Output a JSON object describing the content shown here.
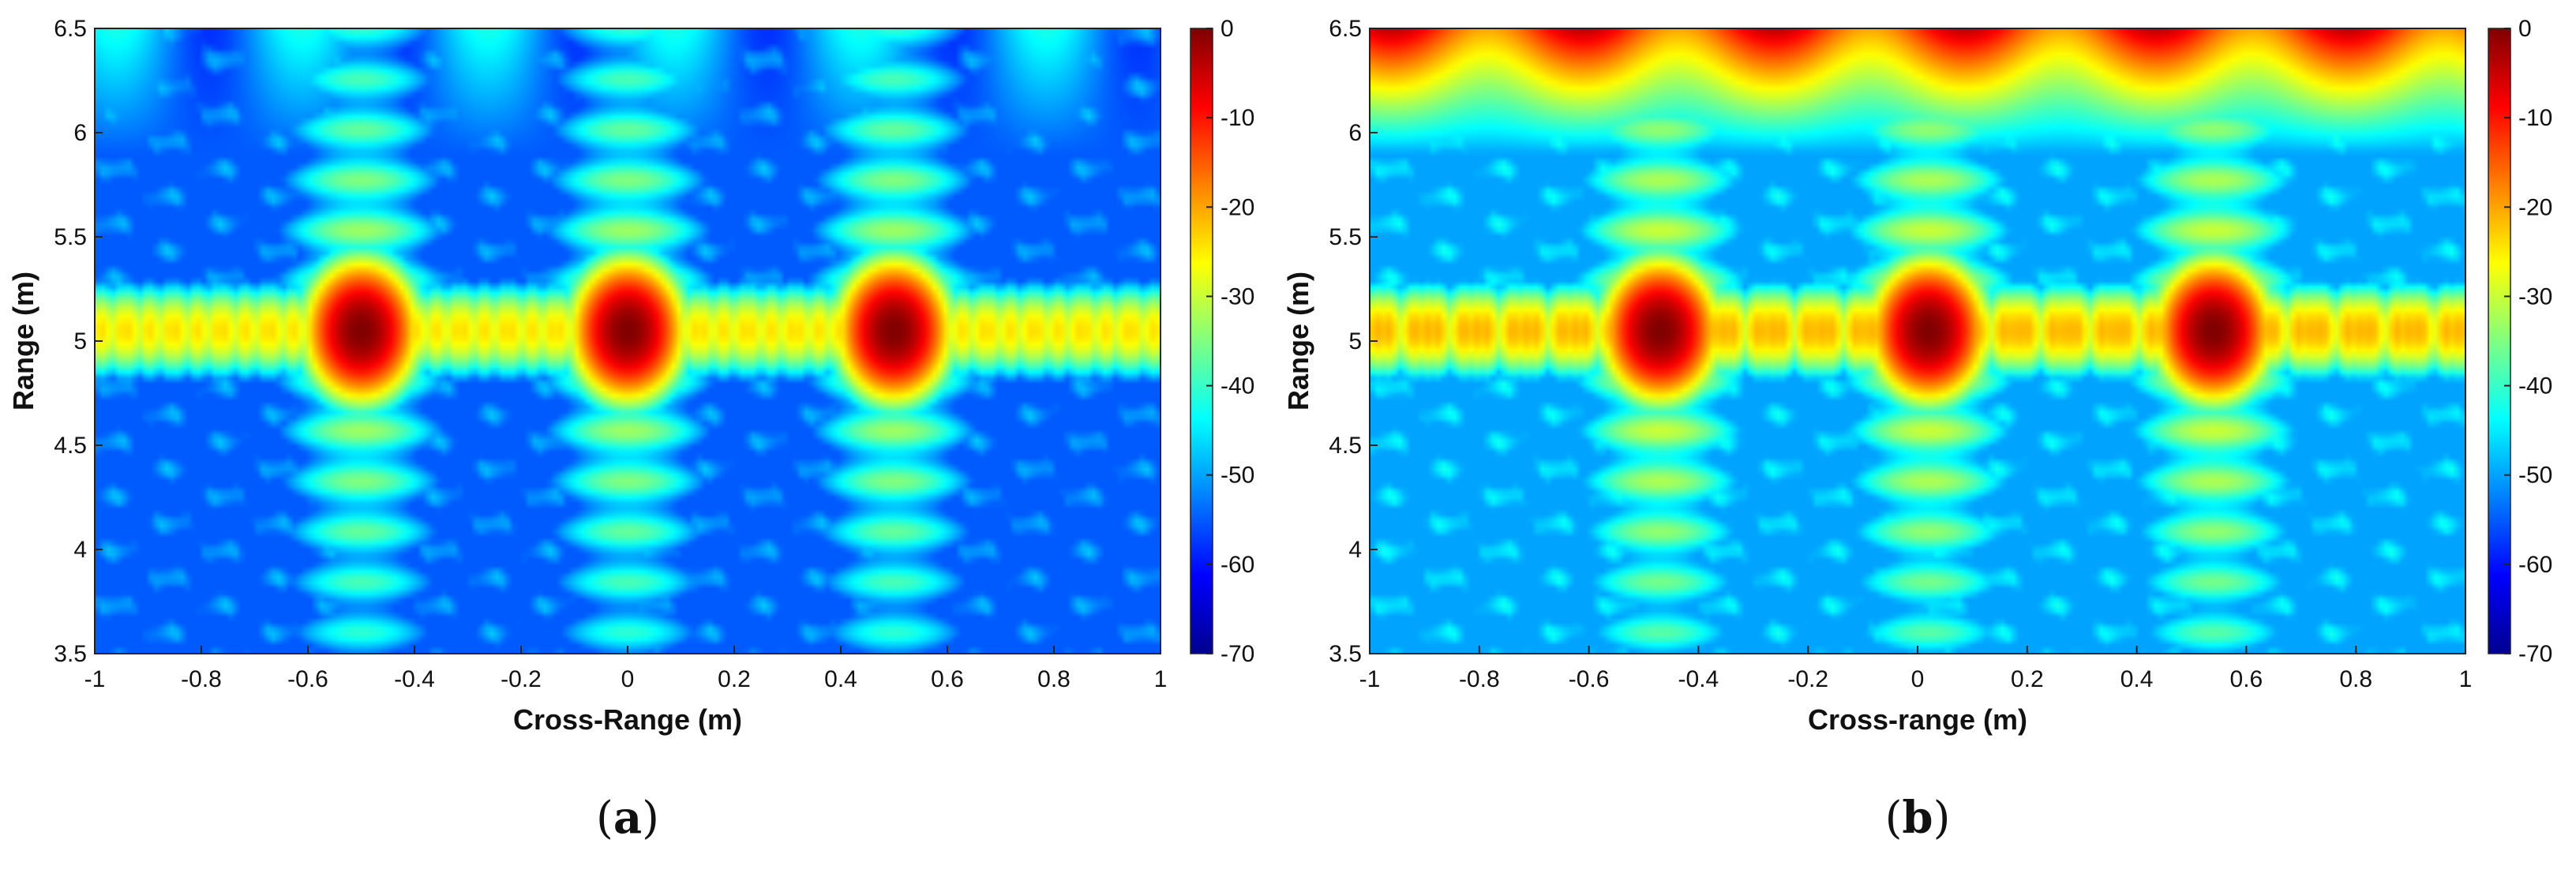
{
  "chart_data": [
    {
      "type": "heatmap",
      "panel_label": "(a)",
      "panel_letter": "a",
      "xlabel": "Cross-Range (m)",
      "ylabel": "Range (m)",
      "xlim": [
        -1,
        1
      ],
      "ylim": [
        3.5,
        6.5
      ],
      "x_ticks": [
        -1,
        -0.8,
        -0.6,
        -0.4,
        -0.2,
        0,
        0.2,
        0.4,
        0.6,
        0.8,
        1
      ],
      "x_tick_labels": [
        "-1",
        "-0.8",
        "-0.6",
        "-0.4",
        "-0.2",
        "0",
        "0.2",
        "0.4",
        "0.6",
        "0.8",
        "1"
      ],
      "y_ticks": [
        3.5,
        4,
        4.5,
        5,
        5.5,
        6,
        6.5
      ],
      "y_tick_labels": [
        "3.5",
        "4",
        "4.5",
        "5",
        "5.5",
        "6",
        "6.5"
      ],
      "colorbar": {
        "range": [
          -70,
          0
        ],
        "ticks": [
          0,
          -10,
          -20,
          -30,
          -40,
          -50,
          -60,
          -70
        ],
        "tick_labels": [
          "0",
          "-10",
          "-20",
          "-30",
          "-40",
          "-50",
          "-60",
          "-70"
        ],
        "colormap": "jet"
      },
      "targets": [
        {
          "x": -0.5,
          "y": 5.05,
          "level_db": 0
        },
        {
          "x": 0.0,
          "y": 5.05,
          "level_db": 0
        },
        {
          "x": 0.5,
          "y": 5.05,
          "level_db": 0
        }
      ],
      "background_level_db": -55,
      "sidelobe_level_db": -35,
      "top_clutter_level_db": -50
    },
    {
      "type": "heatmap",
      "panel_label": "(b)",
      "panel_letter": "b",
      "xlabel": "Cross-range (m)",
      "ylabel": "Range (m)",
      "xlim": [
        -1,
        1
      ],
      "ylim": [
        3.5,
        6.5
      ],
      "x_ticks": [
        -1,
        -0.8,
        -0.6,
        -0.4,
        -0.2,
        0,
        0.2,
        0.4,
        0.6,
        0.8,
        1
      ],
      "x_tick_labels": [
        "-1",
        "-0.8",
        "-0.6",
        "-0.4",
        "-0.2",
        "0",
        "0.2",
        "0.4",
        "0.6",
        "0.8",
        "1"
      ],
      "y_ticks": [
        3.5,
        4,
        4.5,
        5,
        5.5,
        6,
        6.5
      ],
      "y_tick_labels": [
        "3.5",
        "4",
        "4.5",
        "5",
        "5.5",
        "6",
        "6.5"
      ],
      "colorbar": {
        "range": [
          -70,
          0
        ],
        "ticks": [
          0,
          -10,
          -20,
          -30,
          -40,
          -50,
          -60,
          -70
        ],
        "tick_labels": [
          "0",
          "-10",
          "-20",
          "-30",
          "-40",
          "-50",
          "-60",
          "-70"
        ],
        "colormap": "jet"
      },
      "targets": [
        {
          "x": -0.47,
          "y": 5.05,
          "level_db": 0
        },
        {
          "x": 0.02,
          "y": 5.05,
          "level_db": 0
        },
        {
          "x": 0.54,
          "y": 5.05,
          "level_db": 0
        }
      ],
      "background_level_db": -50,
      "sidelobe_level_db": -32,
      "top_clutter_level_db": -12
    }
  ]
}
